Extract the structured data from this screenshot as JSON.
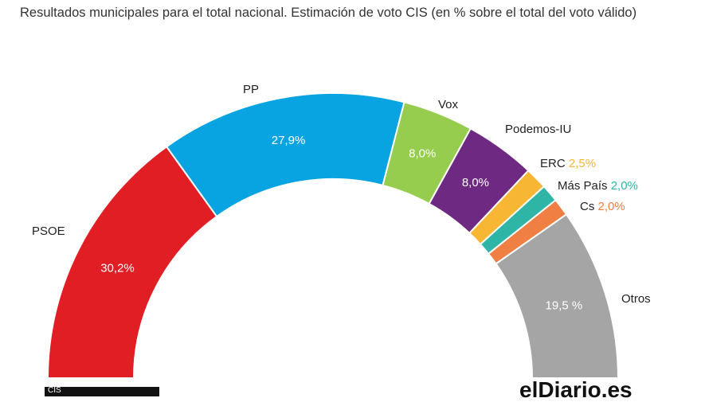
{
  "chart_data": {
    "type": "pie",
    "subtype": "semicircle",
    "title": "Resultados municipales para el total nacional. Estimación de voto CIS (en % sobre el total del voto válido)",
    "series": [
      {
        "name": "PSOE",
        "value": 30.2,
        "value_label": "30,2%",
        "color": "#E21E25"
      },
      {
        "name": "PP",
        "value": 27.9,
        "value_label": "27,9%",
        "color": "#07A4E1"
      },
      {
        "name": "Vox",
        "value": 8.0,
        "value_label": "8,0%",
        "color": "#96CD4F"
      },
      {
        "name": "Podemos-IU",
        "value": 8.0,
        "value_label": "8,0%",
        "color": "#6E2A83"
      },
      {
        "name": "ERC",
        "value": 2.5,
        "value_label": "2,5%",
        "color": "#F7B634"
      },
      {
        "name": "Más País",
        "value": 2.0,
        "value_label": "2,0%",
        "color": "#2EB5A5"
      },
      {
        "name": "Cs",
        "value": 2.0,
        "value_label": "2,0%",
        "color": "#EF7F42"
      },
      {
        "name": "Otros",
        "value": 19.5,
        "value_label": "19,5 %",
        "color": "#A5A5A5"
      }
    ]
  },
  "source": {
    "left_mark": "CIS",
    "brand": "elDiario.es"
  }
}
